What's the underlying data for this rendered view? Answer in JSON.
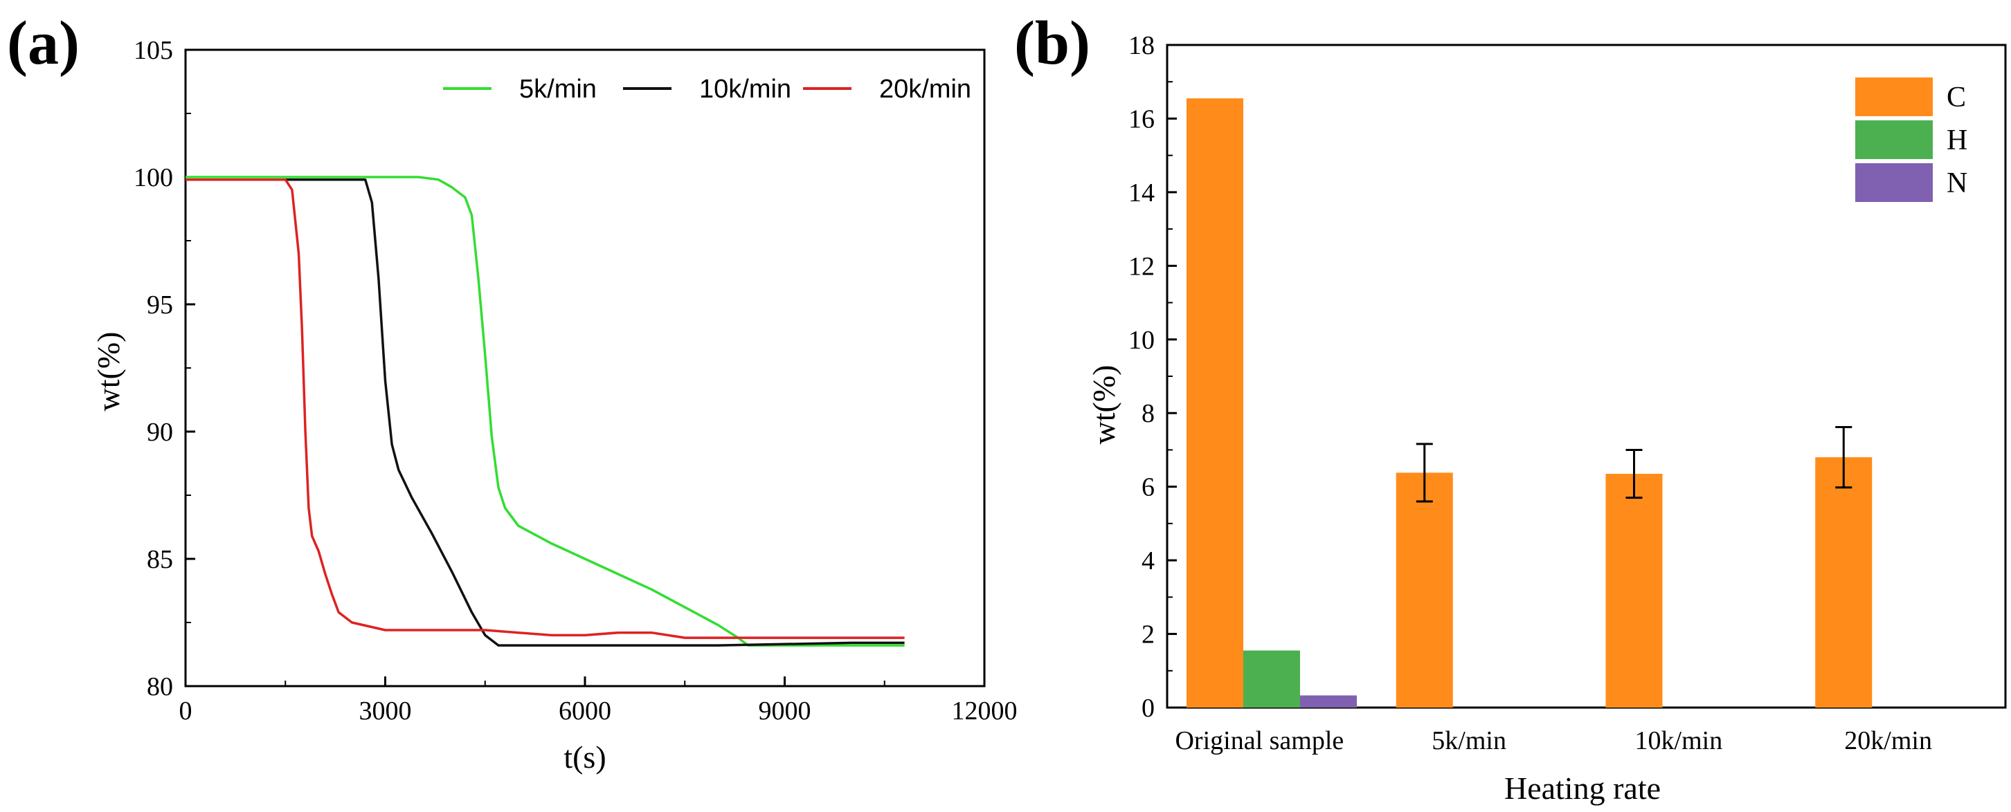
{
  "chart_data": [
    {
      "panel_label": "(a)",
      "type": "line",
      "xlabel": "t(s)",
      "ylabel": "wt(%)",
      "xlim": [
        0,
        12000
      ],
      "ylim": [
        80,
        105
      ],
      "xticks": [
        0,
        3000,
        6000,
        9000,
        12000
      ],
      "yticks": [
        80,
        85,
        90,
        95,
        100,
        105
      ],
      "xtick_labels": [
        "0",
        "3000",
        "6000",
        "9000",
        "12000"
      ],
      "ytick_labels": [
        "80",
        "85",
        "90",
        "95",
        "100",
        "105"
      ],
      "grid": false,
      "legend_position": "top-right",
      "series": [
        {
          "name": "5k/min",
          "color": "#33dd33",
          "x": [
            0,
            1000,
            2000,
            3000,
            3500,
            3800,
            4000,
            4100,
            4200,
            4300,
            4400,
            4500,
            4600,
            4700,
            4800,
            5000,
            5500,
            6000,
            6500,
            7000,
            7500,
            8000,
            8300,
            8450,
            9000,
            10000,
            10800
          ],
          "y": [
            100,
            100,
            100,
            100,
            100,
            99.9,
            99.6,
            99.4,
            99.2,
            98.5,
            96.0,
            93.0,
            89.8,
            87.8,
            87.0,
            86.3,
            85.6,
            85.0,
            84.4,
            83.8,
            83.1,
            82.4,
            81.9,
            81.6,
            81.6,
            81.6,
            81.6
          ]
        },
        {
          "name": "10k/min",
          "color": "#111111",
          "x": [
            0,
            1000,
            2000,
            2500,
            2700,
            2800,
            2900,
            3000,
            3100,
            3200,
            3400,
            3700,
            4000,
            4300,
            4500,
            4700,
            5000,
            6000,
            8000,
            10000,
            10800
          ],
          "y": [
            99.9,
            99.9,
            99.9,
            99.9,
            99.9,
            99.0,
            96.0,
            92.0,
            89.5,
            88.5,
            87.4,
            86.0,
            84.5,
            82.9,
            82.0,
            81.6,
            81.6,
            81.6,
            81.6,
            81.7,
            81.7
          ]
        },
        {
          "name": "20k/min",
          "color": "#dd2222",
          "x": [
            0,
            1000,
            1500,
            1600,
            1700,
            1750,
            1800,
            1850,
            1900,
            2000,
            2100,
            2200,
            2300,
            2500,
            3000,
            3500,
            4000,
            4500,
            5000,
            5500,
            6000,
            6500,
            7000,
            7500,
            8000,
            9000,
            10000,
            10800
          ],
          "y": [
            99.9,
            99.9,
            99.9,
            99.5,
            97.0,
            94.0,
            90.0,
            87.0,
            85.9,
            85.3,
            84.4,
            83.6,
            82.9,
            82.5,
            82.2,
            82.2,
            82.2,
            82.2,
            82.1,
            82.0,
            82.0,
            82.1,
            82.1,
            81.9,
            81.9,
            81.9,
            81.9,
            81.9
          ]
        }
      ]
    },
    {
      "panel_label": "(b)",
      "type": "bar",
      "xlabel": "Heating rate",
      "ylabel": "wt(%)",
      "ylim": [
        0,
        18
      ],
      "yticks": [
        0,
        2,
        4,
        6,
        8,
        10,
        12,
        14,
        16,
        18
      ],
      "ytick_labels": [
        "0",
        "2",
        "4",
        "6",
        "8",
        "10",
        "12",
        "14",
        "16",
        "18"
      ],
      "categories": [
        "Original sample",
        "5k/min",
        "10k/min",
        "20k/min"
      ],
      "grid": false,
      "legend_position": "top-right",
      "series": [
        {
          "name": "C",
          "color": "#ff8c1a",
          "values": [
            16.55,
            6.38,
            6.35,
            6.8
          ],
          "errors": [
            null,
            0.78,
            0.65,
            0.82
          ]
        },
        {
          "name": "H",
          "color": "#4cb050",
          "values": [
            1.55,
            null,
            null,
            null
          ],
          "errors": [
            null,
            null,
            null,
            null
          ]
        },
        {
          "name": "N",
          "color": "#8060b0",
          "values": [
            0.33,
            null,
            null,
            null
          ],
          "errors": [
            null,
            null,
            null,
            null
          ]
        }
      ]
    }
  ]
}
